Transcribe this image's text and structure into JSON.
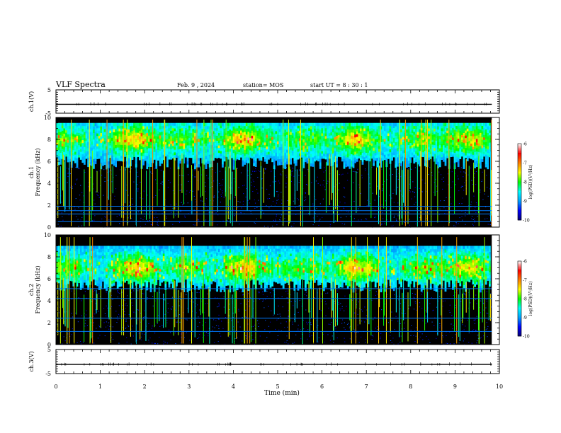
{
  "header": {
    "title": "VLF Spectra",
    "date": "Feb. 9 , 2024",
    "station": "station= MOS",
    "start": "start UT = 8 : 30 : 1"
  },
  "chart_data": [
    {
      "type": "line",
      "name": "ch1-waveform",
      "ylabel": "ch.1(V)",
      "ylim": [
        -5,
        5
      ],
      "yticks": [
        "5",
        "-5"
      ],
      "x": [
        0,
        9.83
      ],
      "y": [
        -1.2,
        -1.2
      ]
    },
    {
      "type": "heatmap",
      "name": "ch1-spectrogram",
      "ylabel": "ch.1 Frequency (kHz)",
      "ylim": [
        0,
        10
      ],
      "yticks": [
        "0",
        "2",
        "4",
        "6",
        "8",
        "10"
      ],
      "xlim": [
        0,
        10
      ],
      "data_end_min": 9.83,
      "emission_band_khz": [
        5.5,
        9.5
      ],
      "emission_peak_khz": 8,
      "horizontal_lines_khz": [
        0.5,
        1.2,
        1.5,
        1.9
      ],
      "colorbar": {
        "label": "log(PSD)(V²/Hz)",
        "ticks": [
          "-6",
          "-7",
          "-8",
          "-9",
          "-10"
        ],
        "range": [
          -10,
          -6
        ]
      }
    },
    {
      "type": "heatmap",
      "name": "ch2-spectrogram",
      "ylabel": "ch.2 Frequency (kHz)",
      "ylim": [
        0,
        10
      ],
      "yticks": [
        "0",
        "2",
        "4",
        "6",
        "8",
        "10"
      ],
      "xlim": [
        0,
        10
      ],
      "data_end_min": 9.83,
      "emission_band_khz": [
        5,
        9
      ],
      "emission_peak_khz": 7,
      "horizontal_lines_khz": [
        1.2,
        2.4,
        4.2,
        5.1
      ],
      "colorbar": {
        "label": "log(PSD)(V²/Hz)",
        "ticks": [
          "-6",
          "-7",
          "-8",
          "-9",
          "-10"
        ],
        "range": [
          -10,
          -6
        ]
      }
    },
    {
      "type": "line",
      "name": "ch3-waveform",
      "ylabel": "ch.3(V)",
      "ylim": [
        -5,
        5
      ],
      "yticks": [
        "5",
        "-5"
      ],
      "x": [
        0,
        9.83
      ],
      "y": [
        -1.2,
        -1.2
      ]
    }
  ],
  "xaxis": {
    "label": "Time (min)",
    "ticks": [
      "0",
      "1",
      "2",
      "3",
      "4",
      "5",
      "6",
      "7",
      "8",
      "9",
      "10"
    ],
    "range": [
      0,
      10
    ]
  },
  "colors": {
    "background_spectrum": "#000000",
    "colormap": [
      "#06006e",
      "#0000ff",
      "#00a0ff",
      "#00ffff",
      "#00ff00",
      "#ffff00",
      "#ff8000",
      "#ff0000",
      "#ffffff"
    ]
  }
}
